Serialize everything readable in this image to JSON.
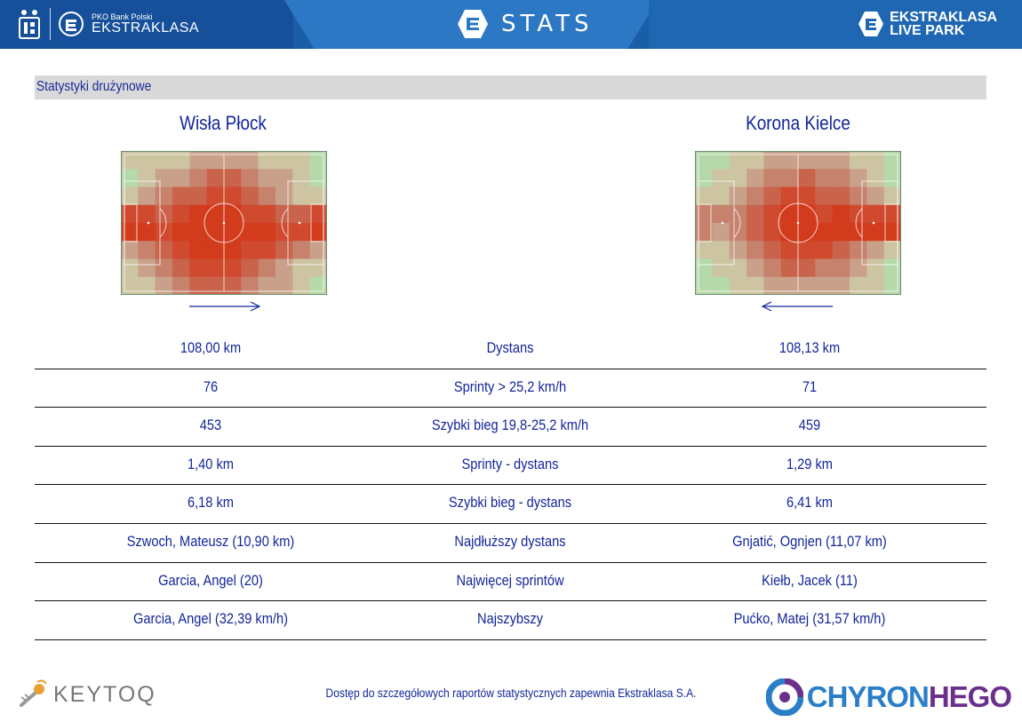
{
  "header": {
    "pko_line1": "PKO Bank Polski",
    "pko_line2": "EKSTRAKLASA",
    "stats_label": "STATS",
    "livepark_line1": "EKSTRAKLASA",
    "livepark_line2": "LIVE PARK"
  },
  "section_title": "Statystyki drużynowe",
  "teams": {
    "home": "Wisła Płock",
    "away": "Korona Kielce"
  },
  "heatmaps": {
    "home": {
      "direction": "right",
      "grid": [
        [
          1,
          1,
          1,
          1,
          2,
          2,
          2,
          2,
          1,
          1,
          1,
          0
        ],
        [
          0,
          1,
          2,
          2,
          3,
          4,
          4,
          3,
          2,
          2,
          1,
          0
        ],
        [
          1,
          2,
          3,
          4,
          4,
          5,
          5,
          4,
          3,
          2,
          1,
          1
        ],
        [
          5,
          5,
          4,
          5,
          6,
          6,
          6,
          5,
          5,
          4,
          4,
          5
        ],
        [
          6,
          6,
          5,
          6,
          6,
          6,
          6,
          6,
          6,
          5,
          5,
          6
        ],
        [
          2,
          3,
          4,
          5,
          6,
          6,
          6,
          5,
          5,
          4,
          3,
          2
        ],
        [
          1,
          2,
          3,
          4,
          5,
          5,
          5,
          4,
          3,
          2,
          1,
          1
        ],
        [
          1,
          1,
          2,
          3,
          4,
          4,
          4,
          3,
          2,
          2,
          1,
          0
        ]
      ]
    },
    "away": {
      "direction": "left",
      "grid": [
        [
          0,
          0,
          1,
          1,
          2,
          2,
          2,
          2,
          2,
          1,
          1,
          0
        ],
        [
          0,
          1,
          1,
          2,
          3,
          3,
          4,
          3,
          3,
          2,
          1,
          0
        ],
        [
          1,
          1,
          2,
          3,
          4,
          5,
          5,
          4,
          4,
          3,
          2,
          1
        ],
        [
          3,
          3,
          3,
          4,
          5,
          6,
          6,
          5,
          6,
          5,
          5,
          5
        ],
        [
          3,
          2,
          3,
          4,
          5,
          6,
          6,
          6,
          6,
          6,
          6,
          6
        ],
        [
          1,
          1,
          2,
          3,
          4,
          5,
          5,
          5,
          4,
          3,
          2,
          1
        ],
        [
          0,
          1,
          1,
          2,
          3,
          4,
          4,
          3,
          3,
          2,
          1,
          0
        ],
        [
          0,
          0,
          1,
          1,
          2,
          2,
          2,
          2,
          2,
          1,
          1,
          0
        ]
      ]
    },
    "colors": [
      "#b6d9ab",
      "#cdc4a2",
      "#c9a18b",
      "#c6826d",
      "#c9634b",
      "#cf4a2e",
      "#d23b1c"
    ]
  },
  "rows": [
    {
      "home": "108,00 km",
      "label": "Dystans",
      "away": "108,13 km"
    },
    {
      "home": "76",
      "label": "Sprinty > 25,2 km/h",
      "away": "71"
    },
    {
      "home": "453",
      "label": "Szybki bieg 19,8-25,2 km/h",
      "away": "459"
    },
    {
      "home": "1,40 km",
      "label": "Sprinty - dystans",
      "away": "1,29 km"
    },
    {
      "home": "6,18 km",
      "label": "Szybki bieg - dystans",
      "away": "6,41 km"
    },
    {
      "home": "Szwoch, Mateusz (10,90 km)",
      "label": "Najdłuższy dystans",
      "away": "Gnjatić, Ognjen (11,07 km)"
    },
    {
      "home": "Garcia, Angel (20)",
      "label": "Najwięcej sprintów",
      "away": "Kiełb, Jacek (11)"
    },
    {
      "home": "Garcia, Angel (32,39 km/h)",
      "label": "Najszybszy",
      "away": "Pućko, Matej (31,57 km/h)"
    }
  ],
  "footer": {
    "note": "Dostęp do szczegółowych raportów statystycznych zapewnia Ekstraklasa S.A.",
    "keytoq": "KEYTOQ",
    "chyron_a": "CHYRON",
    "chyron_b": "HEGO"
  },
  "colors": {
    "header_blue": "#1a5ea8",
    "text_blue": "#13269a",
    "chyron_blue": "#2a7fc8",
    "chyron_purple": "#6b2f8c"
  }
}
